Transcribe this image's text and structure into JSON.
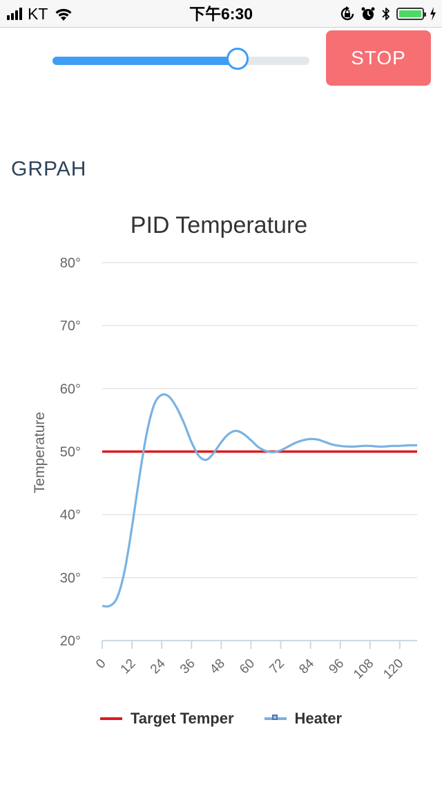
{
  "status_bar": {
    "carrier": "KT",
    "time": "下午6:30",
    "battery_level": 1.0
  },
  "controls": {
    "slider_value": 0.72,
    "stop_label": "STOP",
    "accent_color": "#3d9ef3",
    "stop_color": "#f66f73"
  },
  "section": {
    "title": "GRPAH"
  },
  "chart_data": {
    "type": "line",
    "title": "PID Temperature",
    "xlabel": "",
    "ylabel": "Temperature",
    "xlim": [
      0,
      127
    ],
    "ylim": [
      20,
      80
    ],
    "x_ticks": [
      0,
      12,
      24,
      36,
      48,
      60,
      72,
      84,
      96,
      108,
      120
    ],
    "y_ticks": [
      "20°",
      "30°",
      "40°",
      "50°",
      "60°",
      "70°",
      "80°"
    ],
    "y_tick_values": [
      20,
      30,
      40,
      50,
      60,
      70,
      80
    ],
    "grid": true,
    "legend": "bottom",
    "series": [
      {
        "name": "Target Temper",
        "color": "#e0191b",
        "x": [
          0,
          127
        ],
        "values": [
          50,
          50
        ]
      },
      {
        "name": "Heater",
        "color": "#7ab2e3",
        "x": [
          0,
          3,
          6,
          9,
          12,
          15,
          18,
          21,
          24,
          27,
          30,
          33,
          36,
          39,
          42,
          45,
          48,
          51,
          54,
          57,
          60,
          63,
          66,
          69,
          72,
          75,
          78,
          81,
          84,
          87,
          90,
          93,
          96,
          99,
          102,
          105,
          108,
          111,
          114,
          117,
          120,
          124,
          127
        ],
        "values": [
          25.5,
          25.5,
          26.8,
          31,
          38,
          46,
          53,
          57.5,
          59,
          58.7,
          57,
          54.5,
          51.5,
          49.3,
          48.7,
          49.8,
          51.5,
          52.8,
          53.3,
          52.8,
          51.8,
          50.7,
          50.1,
          49.9,
          50.2,
          50.8,
          51.4,
          51.8,
          52,
          51.9,
          51.5,
          51.1,
          50.9,
          50.8,
          50.8,
          50.9,
          50.9,
          50.8,
          50.8,
          50.9,
          50.9,
          51.0,
          51.0
        ]
      }
    ]
  }
}
